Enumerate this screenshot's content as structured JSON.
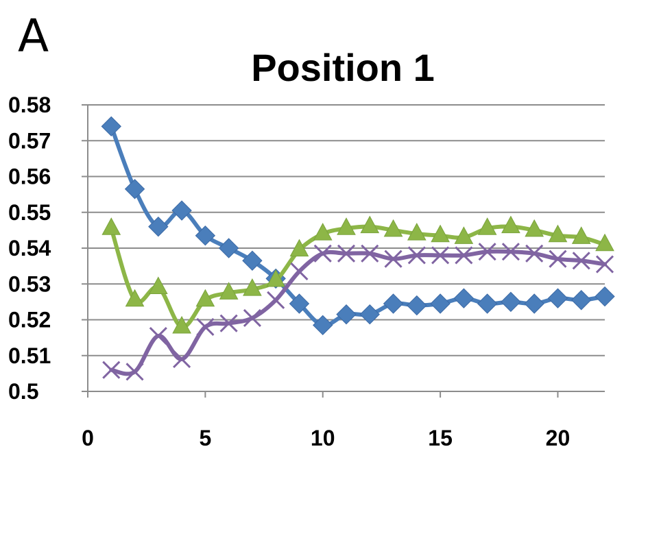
{
  "panel_label": "A",
  "chart_data": {
    "type": "line",
    "title": "Position 1",
    "xlabel": "",
    "ylabel": "",
    "xlim": [
      0,
      22
    ],
    "ylim": [
      0.5,
      0.58
    ],
    "xticks": [
      0,
      5,
      10,
      15,
      20
    ],
    "yticks": [
      0.5,
      0.51,
      0.52,
      0.53,
      0.54,
      0.55,
      0.56,
      0.57,
      0.58
    ],
    "ytick_labels": [
      "0.5",
      "0.51",
      "0.52",
      "0.53",
      "0.54",
      "0.55",
      "0.56",
      "0.57",
      "0.58"
    ],
    "grid": true,
    "legend": "none",
    "x": [
      1,
      2,
      3,
      4,
      5,
      6,
      7,
      8,
      9,
      10,
      11,
      12,
      13,
      14,
      15,
      16,
      17,
      18,
      19,
      20,
      21,
      22
    ],
    "series": [
      {
        "marker": "diamond",
        "color": "#4a7ebb",
        "values": [
          0.574,
          0.5565,
          0.546,
          0.5505,
          0.5435,
          0.54,
          0.5365,
          0.5315,
          0.5245,
          0.5185,
          0.5215,
          0.5215,
          0.5245,
          0.524,
          0.5245,
          0.526,
          0.5245,
          0.525,
          0.5245,
          0.526,
          0.5255,
          0.5265
        ]
      },
      {
        "marker": "triangle",
        "color": "#8db647",
        "values": [
          0.5455,
          0.5255,
          0.529,
          0.518,
          0.5255,
          0.5275,
          0.5285,
          0.531,
          0.5395,
          0.544,
          0.5455,
          0.546,
          0.545,
          0.544,
          0.5435,
          0.543,
          0.5455,
          0.546,
          0.545,
          0.5435,
          0.543,
          0.541
        ]
      },
      {
        "marker": "x",
        "color": "#8064a2",
        "values": [
          0.506,
          0.5055,
          0.5155,
          0.509,
          0.518,
          0.519,
          0.5205,
          0.5255,
          0.5335,
          0.5385,
          0.5385,
          0.5385,
          0.537,
          0.538,
          0.538,
          0.538,
          0.539,
          0.539,
          0.5385,
          0.537,
          0.5365,
          0.5355
        ]
      }
    ]
  }
}
